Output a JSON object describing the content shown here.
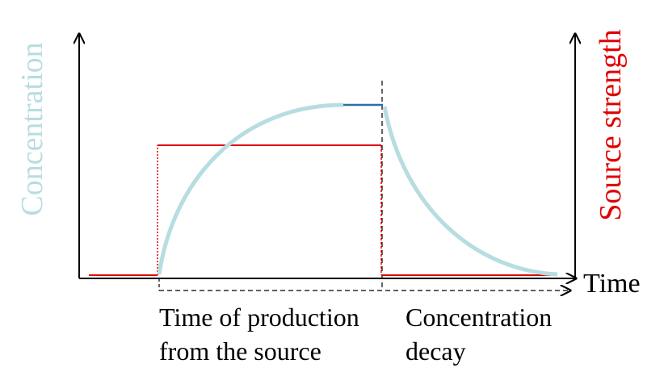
{
  "axes": {
    "left_label": "Concentration",
    "right_label": "Source strength",
    "x_label": "Time"
  },
  "phases": [
    {
      "lines": [
        "Time of production",
        "from the source"
      ]
    },
    {
      "lines": [
        "Concentration",
        "decay"
      ]
    }
  ]
}
